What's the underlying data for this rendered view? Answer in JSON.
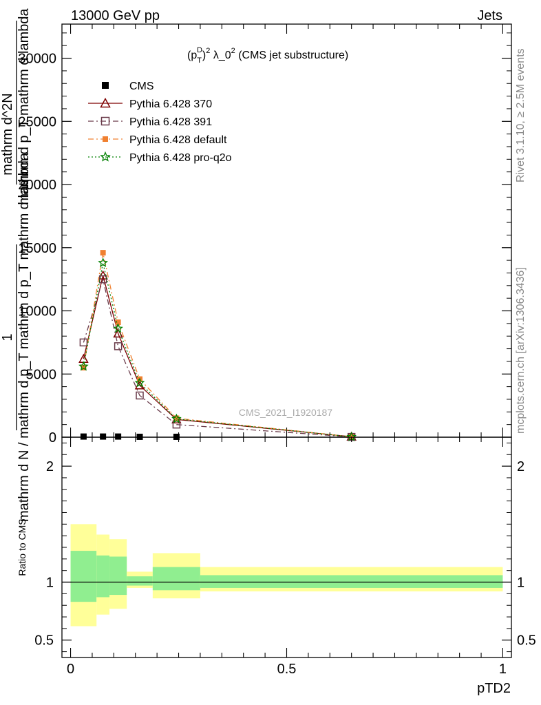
{
  "header": {
    "left": "13000 GeV pp",
    "right": "Jets"
  },
  "side_labels": {
    "rivet": "Rivet 3.1.10, ≥ 2.5M events",
    "mcplots": "mcplots.cern.ch [arXiv:1306.3436]"
  },
  "main_panel": {
    "title": "(p_T^D)^2 λ_0^2 (CMS jet substructure)",
    "watermark": "CMS_2021_I1920187",
    "ylabel_lines": [
      "1",
      "mathrm d N / mathrm d p_T mathrm d p_T mathrm d lambda",
      "mathrm d^2N",
      "mathrm d p_T mathrm d lambda"
    ]
  },
  "ratio_panel": {
    "ylabel": "Ratio to CMS"
  },
  "xaxis": {
    "label": "pTD2"
  },
  "chart_data": [
    {
      "type": "line",
      "panel": "main",
      "title": "(p_T^D)^2 λ_0^2 (CMS jet substructure)",
      "xlabel": "pTD2",
      "ylabel": "1 / mathrm d N / mathrm d p_T mathrm d lambda  mathrm d^2N / mathrm d p_T mathrm d lambda",
      "xlim": [
        -0.02,
        1.02
      ],
      "ylim": [
        0,
        32700
      ],
      "xticks": [
        "0",
        "0.5",
        "1"
      ],
      "yticks": [
        0,
        5000,
        10000,
        15000,
        20000,
        25000,
        30000
      ],
      "ytick_labels": [
        "0",
        "5000",
        "10000",
        "15000",
        "20000",
        "25000",
        "30000"
      ],
      "legend_position": "top-left",
      "series": [
        {
          "name": "CMS",
          "color": "#000000",
          "marker": "filled-square",
          "dash": "none",
          "x": [
            0.03,
            0.075,
            0.11,
            0.16,
            0.245,
            0.65
          ],
          "y": [
            50,
            50,
            50,
            30,
            30,
            10
          ]
        },
        {
          "name": "Pythia 6.428 370",
          "color": "#7f0000",
          "marker": "open-triangle",
          "dash": "solid",
          "x": [
            0.03,
            0.075,
            0.11,
            0.16,
            0.245,
            0.65
          ],
          "y": [
            6200,
            12800,
            8200,
            4100,
            1400,
            40
          ]
        },
        {
          "name": "Pythia 6.428 391",
          "color": "#6a3b4a",
          "marker": "open-square",
          "dash": "dashdot",
          "x": [
            0.03,
            0.075,
            0.11,
            0.16,
            0.245,
            0.65
          ],
          "y": [
            7500,
            12500,
            7200,
            3300,
            1000,
            20
          ]
        },
        {
          "name": "Pythia 6.428 default",
          "color": "#f08030",
          "marker": "filled-square",
          "dash": "dashdot",
          "x": [
            0.03,
            0.075,
            0.11,
            0.16,
            0.245,
            0.65
          ],
          "y": [
            5500,
            14600,
            9100,
            4600,
            1500,
            30
          ]
        },
        {
          "name": "Pythia 6.428 pro-q2o",
          "color": "#008000",
          "marker": "open-star",
          "dash": "dotted",
          "x": [
            0.03,
            0.075,
            0.11,
            0.16,
            0.245,
            0.65
          ],
          "y": [
            5600,
            13800,
            8600,
            4300,
            1450,
            25
          ]
        }
      ]
    },
    {
      "type": "area",
      "panel": "ratio",
      "ylabel": "Ratio to CMS",
      "xlabel": "pTD2",
      "xlim": [
        -0.02,
        1.02
      ],
      "ylim": [
        0.35,
        2.25
      ],
      "yticks": [
        0.5,
        1,
        2
      ],
      "ytick_labels": [
        "0.5",
        "1",
        "2"
      ],
      "xticks": [
        "0",
        "0.5",
        "1"
      ],
      "reference_line": 1,
      "bands": [
        {
          "x_low": 0.0,
          "x_high": 0.06,
          "stat_low": 0.83,
          "stat_high": 1.27,
          "tot_low": 0.62,
          "tot_high": 1.5
        },
        {
          "x_low": 0.06,
          "x_high": 0.09,
          "stat_low": 0.87,
          "stat_high": 1.23,
          "tot_low": 0.72,
          "tot_high": 1.41
        },
        {
          "x_low": 0.09,
          "x_high": 0.13,
          "stat_low": 0.89,
          "stat_high": 1.22,
          "tot_low": 0.77,
          "tot_high": 1.37
        },
        {
          "x_low": 0.13,
          "x_high": 0.19,
          "stat_low": 0.97,
          "stat_high": 1.05,
          "tot_low": 0.95,
          "tot_high": 1.09
        },
        {
          "x_low": 0.19,
          "x_high": 0.3,
          "stat_low": 0.93,
          "stat_high": 1.13,
          "tot_low": 0.86,
          "tot_high": 1.25
        },
        {
          "x_low": 0.3,
          "x_high": 1.0,
          "stat_low": 0.95,
          "stat_high": 1.06,
          "tot_low": 0.92,
          "tot_high": 1.13
        }
      ],
      "band_colors": {
        "stat": "#90ee90",
        "total": "#ffff99"
      }
    }
  ]
}
